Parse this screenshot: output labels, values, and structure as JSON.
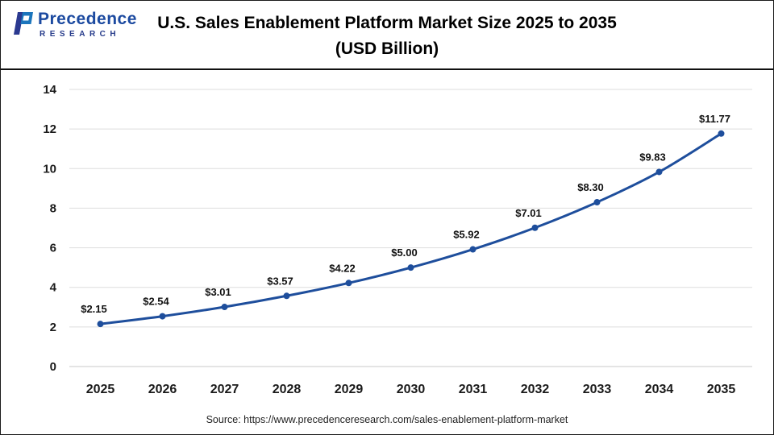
{
  "header": {
    "logo": {
      "name": "Precedence",
      "subtitle": "RESEARCH"
    },
    "title_line1": "U.S. Sales Enablement Platform Market Size 2025 to 2035",
    "title_line2": "(USD Billion)"
  },
  "chart_data": {
    "type": "line",
    "title": "U.S. Sales Enablement Platform Market Size 2025 to 2035 (USD Billion)",
    "categories": [
      "2025",
      "2026",
      "2027",
      "2028",
      "2029",
      "2030",
      "2031",
      "2032",
      "2033",
      "2034",
      "2035"
    ],
    "series": [
      {
        "name": "U.S. Sales Enablement Platform Market Size (USD Billion)",
        "values": [
          2.15,
          2.54,
          3.01,
          3.57,
          4.22,
          5.0,
          5.92,
          7.01,
          8.3,
          9.83,
          11.77
        ]
      }
    ],
    "value_labels": [
      "$2.15",
      "$2.54",
      "$3.01",
      "$3.57",
      "$4.22",
      "$5.00",
      "$5.92",
      "$7.01",
      "$8.30",
      "$9.83",
      "$11.77"
    ],
    "xlabel": "",
    "ylabel": "",
    "ylim": [
      0,
      14
    ],
    "ytick_step": 2,
    "grid": true,
    "legend": "none",
    "line_color": "#1e4e9c",
    "marker_color": "#1e4e9c",
    "grid_color": "#dedede",
    "zero_line_color": "#c9c9c9"
  },
  "footer": {
    "source": "Source: https://www.precedenceresearch.com/sales-enablement-platform-market"
  }
}
